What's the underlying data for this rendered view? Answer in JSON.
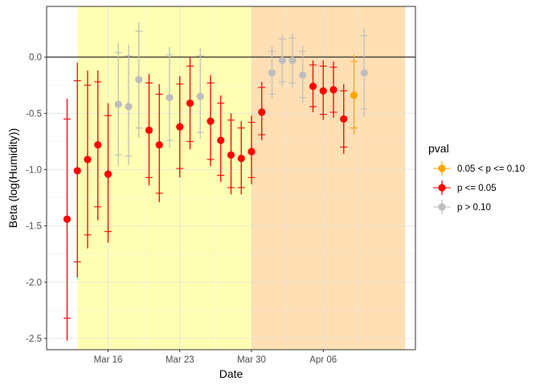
{
  "chart_data": {
    "type": "scatter",
    "subtype": "point-range with error bars",
    "xlabel": "Date",
    "ylabel": "Beta (log(Humidity))",
    "x_range": [
      "2020-03-10",
      "2020-04-15"
    ],
    "ylim": [
      -2.6,
      0.45
    ],
    "x_ticks": [
      {
        "date": "2020-03-16",
        "label": "Mar 16"
      },
      {
        "date": "2020-03-23",
        "label": "Mar 23"
      },
      {
        "date": "2020-03-30",
        "label": "Mar 30"
      },
      {
        "date": "2020-04-06",
        "label": "Apr 06"
      }
    ],
    "y_ticks": [
      0.0,
      -0.5,
      -1.0,
      -1.5,
      -2.0,
      -2.5
    ],
    "y_tick_labels": [
      "0.0",
      "-0.5",
      "-1.0",
      "-1.5",
      "-2.0",
      "-2.5"
    ],
    "reference_line": 0,
    "grid": true,
    "bands": [
      {
        "from": "2020-03-13",
        "to": "2020-03-30",
        "color": "#ffffb3"
      },
      {
        "from": "2020-03-30",
        "to": "2020-04-14",
        "color": "#ffdfb3"
      }
    ],
    "legend": {
      "title": "pval",
      "position": "right",
      "entries": [
        {
          "label": "0.05 < p <= 0.10",
          "color": "#ffa500"
        },
        {
          "label": "p <= 0.05",
          "color": "#ff0000"
        },
        {
          "label": "p > 0.10",
          "color": "#bebebe"
        }
      ]
    },
    "points": [
      {
        "date": "2020-03-12",
        "y": -1.44,
        "inner": [
          -2.32,
          -0.55
        ],
        "outer": [
          -2.52,
          -0.37
        ],
        "group": 1
      },
      {
        "date": "2020-03-13",
        "y": -1.01,
        "inner": [
          -1.82,
          -0.21
        ],
        "outer": [
          -1.96,
          -0.05
        ],
        "group": 1
      },
      {
        "date": "2020-03-14",
        "y": -0.91,
        "inner": [
          -1.58,
          -0.25
        ],
        "outer": [
          -1.7,
          -0.12
        ],
        "group": 1
      },
      {
        "date": "2020-03-15",
        "y": -0.78,
        "inner": [
          -1.33,
          -0.22
        ],
        "outer": [
          -1.45,
          -0.12
        ],
        "group": 1
      },
      {
        "date": "2020-03-16",
        "y": -1.04,
        "inner": [
          -1.55,
          -0.52
        ],
        "outer": [
          -1.65,
          -0.41
        ],
        "group": 1
      },
      {
        "date": "2020-03-17",
        "y": -0.42,
        "inner": [
          -0.87,
          0.04
        ],
        "outer": [
          -0.97,
          0.13
        ],
        "group": 2
      },
      {
        "date": "2020-03-18",
        "y": -0.44,
        "inner": [
          -0.88,
          0.01
        ],
        "outer": [
          -0.96,
          0.11
        ],
        "group": 2
      },
      {
        "date": "2020-03-19",
        "y": -0.2,
        "inner": [
          -0.63,
          0.23
        ],
        "outer": [
          -0.72,
          0.31
        ],
        "group": 2
      },
      {
        "date": "2020-03-20",
        "y": -0.65,
        "inner": [
          -1.07,
          -0.23
        ],
        "outer": [
          -1.14,
          -0.15
        ],
        "group": 1
      },
      {
        "date": "2020-03-21",
        "y": -0.78,
        "inner": [
          -1.21,
          -0.33
        ],
        "outer": [
          -1.29,
          -0.24
        ],
        "group": 1
      },
      {
        "date": "2020-03-22",
        "y": -0.36,
        "inner": [
          -0.74,
          0.02
        ],
        "outer": [
          -0.81,
          0.09
        ],
        "group": 2
      },
      {
        "date": "2020-03-23",
        "y": -0.62,
        "inner": [
          -0.99,
          -0.24
        ],
        "outer": [
          -1.07,
          -0.17
        ],
        "group": 1
      },
      {
        "date": "2020-03-24",
        "y": -0.41,
        "inner": [
          -0.75,
          -0.08
        ],
        "outer": [
          -0.82,
          0.0
        ],
        "group": 1
      },
      {
        "date": "2020-03-25",
        "y": -0.35,
        "inner": [
          -0.67,
          0.01
        ],
        "outer": [
          -0.73,
          0.08
        ],
        "group": 2
      },
      {
        "date": "2020-03-26",
        "y": -0.57,
        "inner": [
          -0.91,
          -0.23
        ],
        "outer": [
          -0.97,
          -0.16
        ],
        "group": 1
      },
      {
        "date": "2020-03-27",
        "y": -0.74,
        "inner": [
          -1.05,
          -0.41
        ],
        "outer": [
          -1.11,
          -0.34
        ],
        "group": 1
      },
      {
        "date": "2020-03-28",
        "y": -0.87,
        "inner": [
          -1.16,
          -0.56
        ],
        "outer": [
          -1.22,
          -0.5
        ],
        "group": 1
      },
      {
        "date": "2020-03-29",
        "y": -0.9,
        "inner": [
          -1.16,
          -0.63
        ],
        "outer": [
          -1.22,
          -0.57
        ],
        "group": 1
      },
      {
        "date": "2020-03-30",
        "y": -0.84,
        "inner": [
          -1.07,
          -0.58
        ],
        "outer": [
          -1.13,
          -0.52
        ],
        "group": 1
      },
      {
        "date": "2020-03-31",
        "y": -0.49,
        "inner": [
          -0.69,
          -0.27
        ],
        "outer": [
          -0.74,
          -0.22
        ],
        "group": 1
      },
      {
        "date": "2020-04-01",
        "y": -0.14,
        "inner": [
          -0.33,
          0.05
        ],
        "outer": [
          -0.37,
          0.1
        ],
        "group": 2
      },
      {
        "date": "2020-04-02",
        "y": -0.03,
        "inner": [
          -0.22,
          0.16
        ],
        "outer": [
          -0.26,
          0.2
        ],
        "group": 2
      },
      {
        "date": "2020-04-03",
        "y": -0.03,
        "inner": [
          -0.23,
          0.17
        ],
        "outer": [
          -0.27,
          0.21
        ],
        "group": 2
      },
      {
        "date": "2020-04-04",
        "y": -0.16,
        "inner": [
          -0.36,
          0.05
        ],
        "outer": [
          -0.41,
          0.1
        ],
        "group": 2
      },
      {
        "date": "2020-04-05",
        "y": -0.26,
        "inner": [
          -0.44,
          -0.07
        ],
        "outer": [
          -0.49,
          -0.03
        ],
        "group": 1
      },
      {
        "date": "2020-04-06",
        "y": -0.3,
        "inner": [
          -0.51,
          -0.08
        ],
        "outer": [
          -0.56,
          -0.03
        ],
        "group": 1
      },
      {
        "date": "2020-04-07",
        "y": -0.29,
        "inner": [
          -0.49,
          -0.09
        ],
        "outer": [
          -0.54,
          -0.04
        ],
        "group": 1
      },
      {
        "date": "2020-04-08",
        "y": -0.55,
        "inner": [
          -0.8,
          -0.3
        ],
        "outer": [
          -0.86,
          -0.24
        ],
        "group": 1
      },
      {
        "date": "2020-04-09",
        "y": -0.34,
        "inner": [
          -0.63,
          -0.04
        ],
        "outer": [
          -0.69,
          0.02
        ],
        "group": 0
      },
      {
        "date": "2020-04-10",
        "y": -0.14,
        "inner": [
          -0.46,
          0.19
        ],
        "outer": [
          -0.53,
          0.26
        ],
        "group": 2
      }
    ]
  }
}
